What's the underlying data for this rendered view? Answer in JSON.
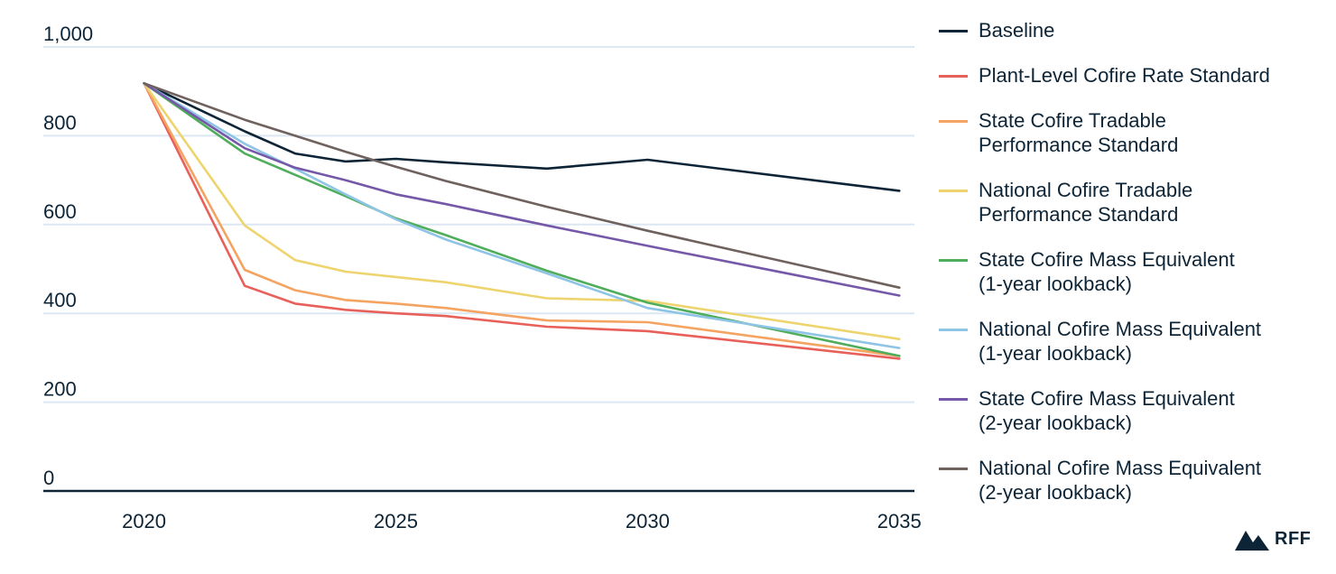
{
  "chart_data": {
    "type": "line",
    "x_ticks": [
      "2020",
      "2025",
      "2030",
      "2035"
    ],
    "y_ticks": [
      "0",
      "200",
      "400",
      "600",
      "800",
      "1,000"
    ],
    "xlim": [
      2018,
      2035.3
    ],
    "ylim": [
      0,
      1000
    ],
    "grid": true,
    "legend_position": "right",
    "title": "",
    "xlabel": "",
    "ylabel": "",
    "series": [
      {
        "name": "Baseline",
        "color": "#0d2436",
        "x": [
          2020,
          2022,
          2023,
          2024,
          2025,
          2026,
          2028,
          2030,
          2035
        ],
        "y": [
          918,
          810,
          760,
          742,
          748,
          740,
          726,
          746,
          676
        ]
      },
      {
        "name": "Plant-Level Cofire Rate Standard",
        "color": "#e8605a",
        "x": [
          2020,
          2022,
          2023,
          2024,
          2025,
          2026,
          2028,
          2030,
          2035
        ],
        "y": [
          918,
          462,
          422,
          408,
          400,
          394,
          370,
          360,
          298
        ]
      },
      {
        "name": "State Cofire Tradable\nPerformance Standard",
        "color": "#f4a361",
        "x": [
          2020,
          2022,
          2023,
          2024,
          2025,
          2026,
          2028,
          2030,
          2035
        ],
        "y": [
          918,
          498,
          452,
          430,
          422,
          412,
          384,
          380,
          304
        ]
      },
      {
        "name": "National Cofire Tradable\nPerformance Standard",
        "color": "#eed46e",
        "x": [
          2020,
          2022,
          2023,
          2024,
          2025,
          2026,
          2028,
          2030,
          2035
        ],
        "y": [
          918,
          598,
          520,
          494,
          482,
          470,
          434,
          428,
          342
        ]
      },
      {
        "name": "State Cofire Mass Equivalent\n(1-year lookback)",
        "color": "#4fad5b",
        "x": [
          2020,
          2022,
          2023,
          2024,
          2025,
          2026,
          2028,
          2030,
          2035
        ],
        "y": [
          918,
          760,
          712,
          664,
          614,
          576,
          496,
          424,
          304
        ]
      },
      {
        "name": "National Cofire Mass Equivalent\n(1-year lookback)",
        "color": "#8ec4e6",
        "x": [
          2020,
          2022,
          2023,
          2024,
          2025,
          2026,
          2028,
          2030,
          2035
        ],
        "y": [
          918,
          782,
          726,
          668,
          612,
          566,
          490,
          412,
          322
        ]
      },
      {
        "name": "State Cofire Mass Equivalent\n(2-year lookback)",
        "color": "#7558a8",
        "x": [
          2020,
          2022,
          2023,
          2024,
          2025,
          2026,
          2028,
          2030,
          2035
        ],
        "y": [
          918,
          772,
          728,
          700,
          668,
          646,
          598,
          552,
          440
        ]
      },
      {
        "name": "National Cofire Mass Equivalent\n(2-year lookback)",
        "color": "#6f625e",
        "x": [
          2020,
          2022,
          2023,
          2024,
          2025,
          2026,
          2028,
          2030,
          2035
        ],
        "y": [
          918,
          836,
          800,
          764,
          730,
          698,
          640,
          586,
          458
        ]
      }
    ]
  },
  "branding": {
    "logo_text": "RFF"
  }
}
